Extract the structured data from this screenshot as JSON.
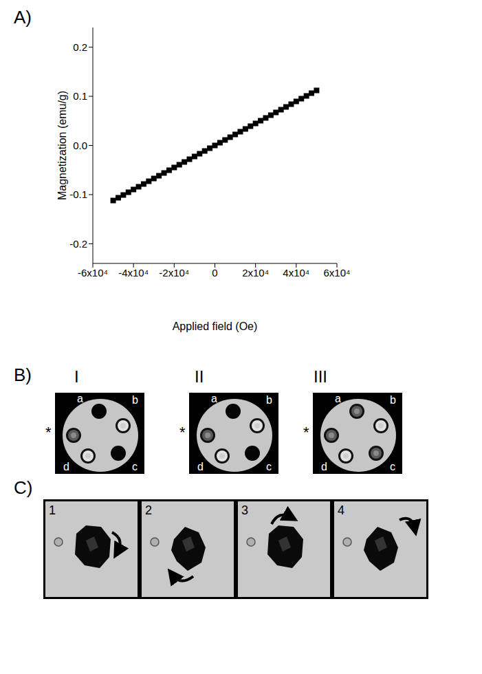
{
  "chart_data": {
    "type": "scatter",
    "x_label": "Applied field (Oe)",
    "y_label": "Magnetization (emu/g)",
    "marker": "square",
    "color": "#000000",
    "grid": false,
    "x": [
      -50000,
      -47500,
      -45000,
      -42500,
      -40000,
      -37500,
      -35000,
      -32500,
      -30000,
      -27500,
      -25000,
      -22500,
      -20000,
      -17500,
      -15000,
      -12500,
      -10000,
      -7500,
      -5000,
      -2500,
      0,
      2500,
      5000,
      7500,
      10000,
      12500,
      15000,
      17500,
      20000,
      22500,
      25000,
      27500,
      30000,
      32500,
      35000,
      37500,
      40000,
      42500,
      45000,
      47500,
      50000
    ],
    "values": [
      -0.112,
      -0.1064,
      -0.1008,
      -0.0952,
      -0.0896,
      -0.084,
      -0.0784,
      -0.0728,
      -0.0672,
      -0.0616,
      -0.056,
      -0.0504,
      -0.0448,
      -0.0392,
      -0.0336,
      -0.028,
      -0.0224,
      -0.0168,
      -0.0112,
      -0.0056,
      0,
      0.0056,
      0.0112,
      0.0168,
      0.0224,
      0.028,
      0.0336,
      0.0392,
      0.0448,
      0.0504,
      0.056,
      0.0616,
      0.0672,
      0.0728,
      0.0784,
      0.084,
      0.0896,
      0.0952,
      0.1008,
      0.1064,
      0.112
    ],
    "xlim": [
      -60000,
      60000
    ],
    "xticks": [
      {
        "value": -60000,
        "label": "-6x10⁴"
      },
      {
        "value": -40000,
        "label": "-4x10⁴"
      },
      {
        "value": -20000,
        "label": "-2x10⁴"
      },
      0,
      {
        "value": 20000,
        "label": "2x10⁴"
      },
      {
        "value": 40000,
        "label": "4x10⁴"
      },
      {
        "value": 60000,
        "label": "6x10⁴"
      }
    ],
    "ylim": [
      -0.24,
      0.24
    ],
    "yticks": [
      -0.2,
      -0.1,
      {
        "value": 0,
        "label": "0.0"
      },
      0.1,
      0.2
    ]
  },
  "panel_labels": {
    "A": "A)",
    "B": "B)",
    "C": "C)"
  },
  "mri": {
    "images": [
      "I",
      "II",
      "III"
    ],
    "tube_labels": [
      "a",
      "b",
      "c",
      "d"
    ],
    "reference_mark": "*"
  },
  "cells": {
    "frames": [
      "1",
      "2",
      "3",
      "4"
    ]
  }
}
